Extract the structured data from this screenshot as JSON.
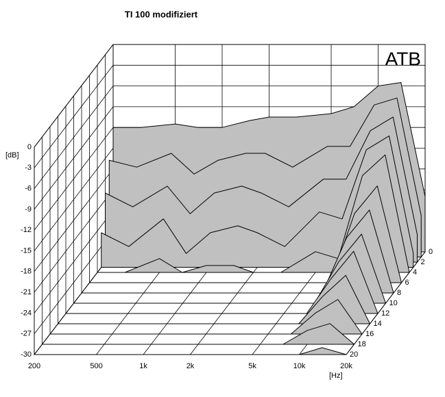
{
  "chart_data": {
    "type": "waterfall",
    "title": "TI 100 modifiziert",
    "badge": "ATB",
    "y_label": "[dB]",
    "x_label": "[Hz]",
    "log_x": true,
    "grid": true,
    "fill_color": "#c0c0c0",
    "x": [
      200,
      300,
      500,
      700,
      1000,
      1500,
      2000,
      3000,
      5000,
      7000,
      10000,
      14000,
      20000
    ],
    "xlim": [
      200,
      20000
    ],
    "xticks": [
      200,
      500,
      {
        "value": 1000,
        "label": "1k"
      },
      {
        "value": 2000,
        "label": "2k"
      },
      {
        "value": 5000,
        "label": "5k"
      },
      {
        "value": 10000,
        "label": "10k"
      },
      {
        "value": 20000,
        "label": "20k"
      }
    ],
    "ylim": [
      -30,
      0
    ],
    "yticks": [
      0,
      -3,
      -6,
      -9,
      -12,
      -15,
      -18,
      -21,
      -24,
      -27,
      -30
    ],
    "zlim": [
      0,
      20
    ],
    "zticks": [
      0,
      2,
      4,
      6,
      8,
      10,
      12,
      14,
      16,
      18,
      20
    ],
    "series": [
      {
        "z": 0,
        "values": [
          -12,
          -12,
          -11.5,
          -12,
          -12,
          -11,
          -10.5,
          -10.5,
          -10,
          -9,
          -6,
          -5.5,
          -22
        ]
      },
      {
        "z": 1,
        "values": [
          -16,
          -17,
          -15,
          -18,
          -16,
          -15,
          -15,
          -17,
          -14,
          -14,
          -8,
          -7,
          -24
        ]
      },
      {
        "z": 2,
        "values": [
          -20,
          -22,
          -19,
          -23,
          -20,
          -19,
          -20,
          -22,
          -18,
          -18,
          -11,
          -9,
          -26
        ]
      },
      {
        "z": 3,
        "values": [
          -25,
          -27,
          -23,
          -28,
          -25,
          -24,
          -25,
          -27,
          -22,
          -23,
          -13,
          -11,
          -28
        ]
      },
      {
        "z": 4,
        "values": [
          -30,
          -30,
          -28,
          -30,
          -29,
          -29,
          -30,
          -30,
          -27,
          -28,
          -16,
          -13,
          -30
        ]
      },
      {
        "z": 6,
        "values": [
          -30,
          -30,
          -30,
          -30,
          -30,
          -30,
          -30,
          -30,
          -30,
          -30,
          -20,
          -16,
          -30
        ]
      },
      {
        "z": 8,
        "values": [
          -30,
          -30,
          -30,
          -30,
          -30,
          -30,
          -30,
          -30,
          -30,
          -30,
          -22,
          -18,
          -30
        ]
      },
      {
        "z": 10,
        "values": [
          -30,
          -30,
          -30,
          -30,
          -30,
          -30,
          -30,
          -30,
          -30,
          -30,
          -24,
          -20,
          -30
        ]
      },
      {
        "z": 12,
        "values": [
          -30,
          -30,
          -30,
          -30,
          -30,
          -30,
          -30,
          -30,
          -30,
          -30,
          -25,
          -21,
          -30
        ]
      },
      {
        "z": 14,
        "values": [
          -30,
          -30,
          -30,
          -30,
          -30,
          -30,
          -30,
          -30,
          -30,
          -30,
          -26,
          -23,
          -30
        ]
      },
      {
        "z": 16,
        "values": [
          -30,
          -30,
          -30,
          -30,
          -30,
          -30,
          -30,
          -30,
          -30,
          -30,
          -27,
          -25,
          -30
        ]
      },
      {
        "z": 18,
        "values": [
          -30,
          -30,
          -30,
          -30,
          -30,
          -30,
          -30,
          -30,
          -30,
          -30,
          -28,
          -27,
          -30
        ]
      },
      {
        "z": 20,
        "values": [
          -30,
          -30,
          -30,
          -30,
          -30,
          -30,
          -30,
          -30,
          -30,
          -30,
          -30,
          -29,
          -30
        ]
      }
    ]
  }
}
